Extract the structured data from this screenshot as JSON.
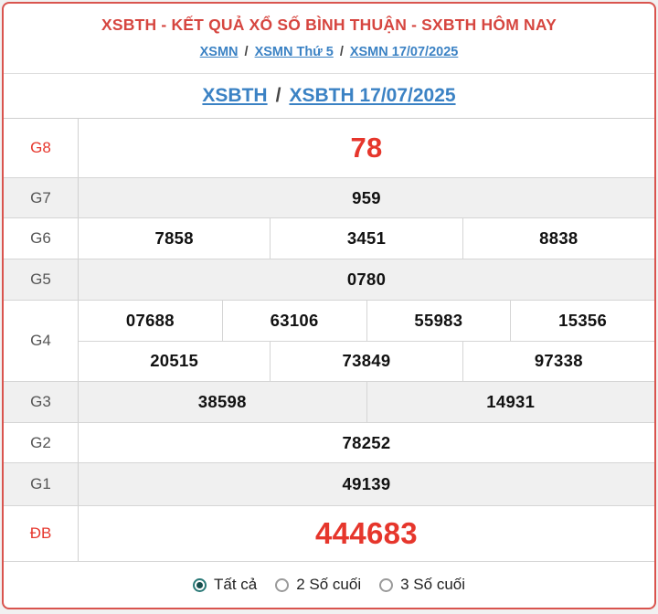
{
  "header": {
    "title": "XSBTH - KẾT QUẢ XỔ SỐ BÌNH THUẬN - SXBTH HÔM NAY",
    "separator": "/",
    "breadcrumb": [
      "XSMN",
      "XSMN Thứ 5",
      "XSMN 17/07/2025"
    ],
    "subheader": [
      "XSBTH",
      "XSBTH 17/07/2025"
    ]
  },
  "results": {
    "rows": [
      {
        "prize": "G8",
        "highlight": true,
        "groups": [
          [
            "78"
          ]
        ]
      },
      {
        "prize": "G7",
        "highlight": false,
        "groups": [
          [
            "959"
          ]
        ]
      },
      {
        "prize": "G6",
        "highlight": false,
        "groups": [
          [
            "7858",
            "3451",
            "8838"
          ]
        ]
      },
      {
        "prize": "G5",
        "highlight": false,
        "groups": [
          [
            "0780"
          ]
        ]
      },
      {
        "prize": "G4",
        "highlight": false,
        "groups": [
          [
            "07688",
            "63106",
            "55983",
            "15356"
          ],
          [
            "20515",
            "73849",
            "97338"
          ]
        ]
      },
      {
        "prize": "G3",
        "highlight": false,
        "groups": [
          [
            "38598",
            "14931"
          ]
        ]
      },
      {
        "prize": "G2",
        "highlight": false,
        "groups": [
          [
            "78252"
          ]
        ]
      },
      {
        "prize": "G1",
        "highlight": false,
        "groups": [
          [
            "49139"
          ]
        ]
      },
      {
        "prize": "ĐB",
        "highlight": true,
        "groups": [
          [
            "444683"
          ]
        ]
      }
    ]
  },
  "filters": {
    "options": [
      {
        "label": "Tất cả",
        "selected": true
      },
      {
        "label": "2 Số cuối",
        "selected": false
      },
      {
        "label": "3 Số cuối",
        "selected": false
      }
    ]
  },
  "colors": {
    "accent_red": "#e6362c",
    "title_red": "#d6453f",
    "border_red": "#d9544e",
    "link_blue": "#3b82c4",
    "row_gray": "#f0f0f0",
    "radio_teal": "#2b7a78"
  }
}
